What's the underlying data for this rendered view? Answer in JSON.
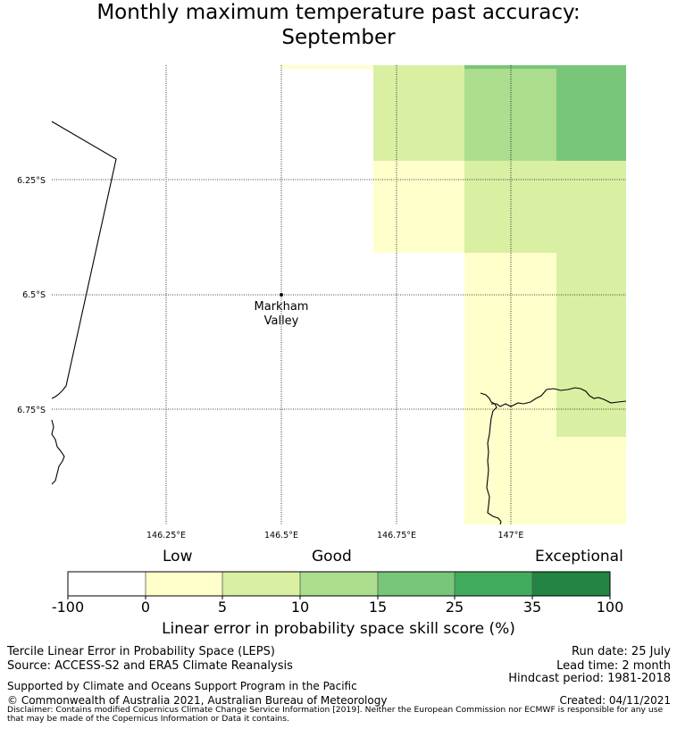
{
  "header": {
    "title_line1": "Monthly maximum temperature past accuracy:",
    "title_line2": "September"
  },
  "map": {
    "lon_ticks": [
      "146.25°E",
      "146.5°E",
      "146.75°E",
      "147°E"
    ],
    "lat_ticks": [
      "6.25°S",
      "6.5°S",
      "6.75°S"
    ],
    "place": {
      "name_line1": "Markham",
      "name_line2": "Valley",
      "lon": 146.5,
      "lat": -6.5
    },
    "cells": [
      {
        "lon_range": [
          146.5,
          146.7
        ],
        "lat_range": [
          -6.0,
          -6.01
        ],
        "score": 3
      },
      {
        "lon_range": [
          146.7,
          146.9
        ],
        "lat_range": [
          -6.0,
          -6.01
        ],
        "score": 8
      },
      {
        "lon_range": [
          146.9,
          147.1
        ],
        "lat_range": [
          -6.0,
          -6.01
        ],
        "score": 17
      },
      {
        "lon_range": [
          146.7,
          146.9
        ],
        "lat_range": [
          -6.01,
          -6.21
        ],
        "score": 8
      },
      {
        "lon_range": [
          146.9,
          147.1
        ],
        "lat_range": [
          -6.01,
          -6.21
        ],
        "score": 12
      },
      {
        "lon_range": [
          147.1,
          147.25
        ],
        "lat_range": [
          -6.01,
          -6.21
        ],
        "score": 18
      },
      {
        "lon_range": [
          146.7,
          146.9
        ],
        "lat_range": [
          -6.21,
          -6.41
        ],
        "score": 3
      },
      {
        "lon_range": [
          146.9,
          147.1
        ],
        "lat_range": [
          -6.21,
          -6.41
        ],
        "score": 8
      },
      {
        "lon_range": [
          147.1,
          147.25
        ],
        "lat_range": [
          -6.21,
          -6.41
        ],
        "score": 8
      },
      {
        "lon_range": [
          146.9,
          147.1
        ],
        "lat_range": [
          -6.41,
          -6.81
        ],
        "score": 3
      },
      {
        "lon_range": [
          147.1,
          147.25
        ],
        "lat_range": [
          -6.41,
          -6.81
        ],
        "score": 8
      },
      {
        "lon_range": [
          146.9,
          147.25
        ],
        "lat_range": [
          -6.81,
          -7.0
        ],
        "score": 3
      }
    ]
  },
  "colorbar": {
    "category_low": "Low",
    "category_good": "Good",
    "category_exceptional": "Exceptional",
    "ticks": [
      "-100",
      "0",
      "5",
      "10",
      "15",
      "25",
      "35",
      "100"
    ],
    "colors": [
      "#ffffff",
      "#ffffcc",
      "#d9f0a3",
      "#addd8e",
      "#78c679",
      "#41ab5d",
      "#238443"
    ],
    "label": "Linear error in probability space skill score (%)"
  },
  "footer": {
    "method": "Tercile Linear Error in Probability Space (LEPS)",
    "source": "Source: ACCESS-S2 and ERA5 Climate Reanalysis",
    "run_date": "Run date: 25 July",
    "lead_time": "Lead time: 2 month",
    "hindcast": "Hindcast period: 1981-2018",
    "support": "Supported by Climate and Oceans Support Program in the Pacific",
    "copyright": "© Commonwealth of Australia 2021, Australian Bureau of Meteorology",
    "created": "Created: 04/11/2021",
    "disclaimer": "Disclaimer: Contains modified Copernicus Climate Change Service Information [2019]. Neither the European Commission nor ECMWF is responsible for any use that may be made of the Copernicus Information or Data it contains."
  }
}
